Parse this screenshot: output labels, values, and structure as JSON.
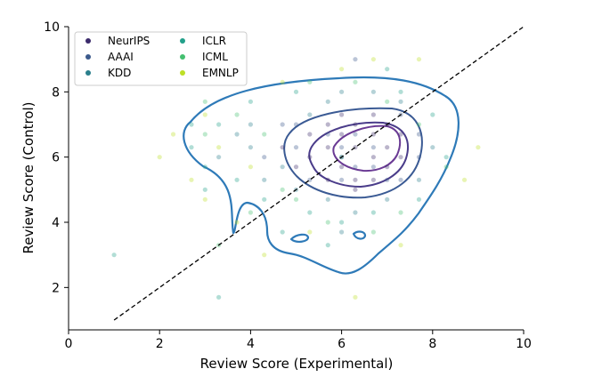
{
  "chart_data": {
    "type": "scatter",
    "xlabel": "Review Score (Experimental)",
    "ylabel": "Review Score (Control)",
    "xlim": [
      0,
      10
    ],
    "ylim": [
      0.7,
      10
    ],
    "xticks": [
      0,
      2,
      4,
      6,
      8,
      10
    ],
    "yticks": [
      2,
      4,
      6,
      8,
      10
    ],
    "grid": false,
    "legend_position": "top-left",
    "legend_columns": 2,
    "reference_line": {
      "style": "dashed",
      "color": "#000000",
      "from": [
        1,
        1
      ],
      "to": [
        10,
        10
      ]
    },
    "series": [
      {
        "name": "NeurIPS",
        "color": "#3b2a6b",
        "points": [
          [
            5.3,
            6.0
          ],
          [
            5.7,
            6.3
          ],
          [
            6.0,
            5.7
          ],
          [
            6.0,
            6.7
          ],
          [
            6.3,
            6.3
          ],
          [
            6.3,
            5.3
          ],
          [
            6.7,
            6.7
          ],
          [
            6.7,
            6.0
          ],
          [
            7.0,
            6.3
          ],
          [
            5.7,
            7.0
          ],
          [
            6.3,
            7.0
          ],
          [
            7.0,
            5.7
          ],
          [
            5.0,
            5.7
          ],
          [
            5.3,
            6.7
          ],
          [
            6.0,
            6.0
          ],
          [
            6.7,
            5.3
          ],
          [
            7.3,
            6.7
          ],
          [
            6.3,
            5.0
          ],
          [
            5.7,
            5.3
          ],
          [
            7.0,
            7.0
          ],
          [
            4.7,
            6.3
          ],
          [
            6.0,
            7.3
          ],
          [
            7.3,
            6.0
          ],
          [
            6.7,
            7.3
          ]
        ]
      },
      {
        "name": "AAAI",
        "color": "#3c5a8c",
        "points": [
          [
            4.3,
            6.0
          ],
          [
            5.0,
            7.0
          ],
          [
            5.7,
            6.7
          ],
          [
            6.3,
            6.7
          ],
          [
            6.7,
            6.3
          ],
          [
            7.0,
            5.3
          ],
          [
            7.7,
            6.0
          ],
          [
            5.3,
            5.3
          ],
          [
            6.0,
            5.3
          ],
          [
            6.3,
            5.7
          ],
          [
            6.7,
            5.7
          ],
          [
            7.3,
            5.3
          ],
          [
            5.0,
            6.3
          ],
          [
            4.7,
            7.0
          ],
          [
            6.0,
            6.3
          ],
          [
            6.3,
            9.0
          ],
          [
            7.3,
            7.3
          ],
          [
            7.7,
            6.7
          ]
        ]
      },
      {
        "name": "KDD",
        "color": "#2a7f8c",
        "points": [
          [
            3.3,
            6.0
          ],
          [
            4.0,
            6.3
          ],
          [
            4.7,
            5.7
          ],
          [
            5.3,
            7.3
          ],
          [
            6.0,
            8.0
          ],
          [
            6.7,
            8.0
          ],
          [
            7.3,
            7.7
          ],
          [
            8.0,
            6.3
          ],
          [
            4.3,
            5.3
          ],
          [
            5.0,
            5.0
          ],
          [
            5.7,
            4.7
          ],
          [
            6.3,
            4.3
          ],
          [
            7.0,
            4.7
          ],
          [
            4.0,
            7.0
          ],
          [
            3.7,
            6.7
          ],
          [
            6.0,
            3.7
          ],
          [
            5.7,
            7.7
          ],
          [
            7.7,
            5.3
          ]
        ]
      },
      {
        "name": "ICLR",
        "color": "#22a08a",
        "points": [
          [
            1.0,
            3.0
          ],
          [
            2.7,
            6.3
          ],
          [
            3.0,
            5.7
          ],
          [
            3.3,
            7.0
          ],
          [
            3.7,
            5.3
          ],
          [
            4.0,
            7.7
          ],
          [
            4.3,
            4.7
          ],
          [
            5.0,
            8.0
          ],
          [
            5.3,
            4.3
          ],
          [
            6.0,
            4.0
          ],
          [
            6.7,
            4.3
          ],
          [
            7.3,
            8.0
          ],
          [
            7.7,
            4.7
          ],
          [
            8.0,
            7.3
          ],
          [
            8.3,
            6.0
          ],
          [
            5.7,
            3.3
          ],
          [
            4.7,
            3.7
          ],
          [
            6.0,
            6.0
          ],
          [
            3.0,
            5.0
          ],
          [
            2.7,
            7.0
          ],
          [
            3.3,
            1.7
          ],
          [
            7.0,
            8.7
          ]
        ]
      },
      {
        "name": "ICML",
        "color": "#44bf70",
        "points": [
          [
            3.0,
            6.7
          ],
          [
            3.7,
            7.3
          ],
          [
            4.3,
            6.7
          ],
          [
            5.0,
            4.7
          ],
          [
            5.7,
            4.0
          ],
          [
            6.3,
            8.3
          ],
          [
            7.0,
            7.7
          ],
          [
            7.7,
            7.0
          ],
          [
            8.3,
            5.7
          ],
          [
            4.0,
            4.3
          ],
          [
            3.3,
            3.3
          ],
          [
            6.7,
            3.7
          ],
          [
            5.3,
            8.3
          ],
          [
            7.3,
            4.3
          ],
          [
            4.7,
            5.0
          ],
          [
            3.0,
            7.7
          ]
        ]
      },
      {
        "name": "EMNLP",
        "color": "#bddf26",
        "points": [
          [
            2.3,
            6.7
          ],
          [
            2.7,
            5.3
          ],
          [
            3.0,
            4.7
          ],
          [
            3.3,
            6.3
          ],
          [
            3.7,
            4.0
          ],
          [
            4.0,
            5.7
          ],
          [
            4.7,
            8.3
          ],
          [
            5.3,
            3.7
          ],
          [
            6.0,
            8.7
          ],
          [
            7.7,
            9.0
          ],
          [
            8.7,
            5.3
          ],
          [
            9.0,
            6.3
          ],
          [
            4.3,
            3.0
          ],
          [
            6.3,
            1.7
          ],
          [
            7.3,
            3.3
          ],
          [
            2.0,
            6.0
          ],
          [
            3.0,
            7.3
          ],
          [
            6.7,
            9.0
          ]
        ]
      }
    ]
  }
}
